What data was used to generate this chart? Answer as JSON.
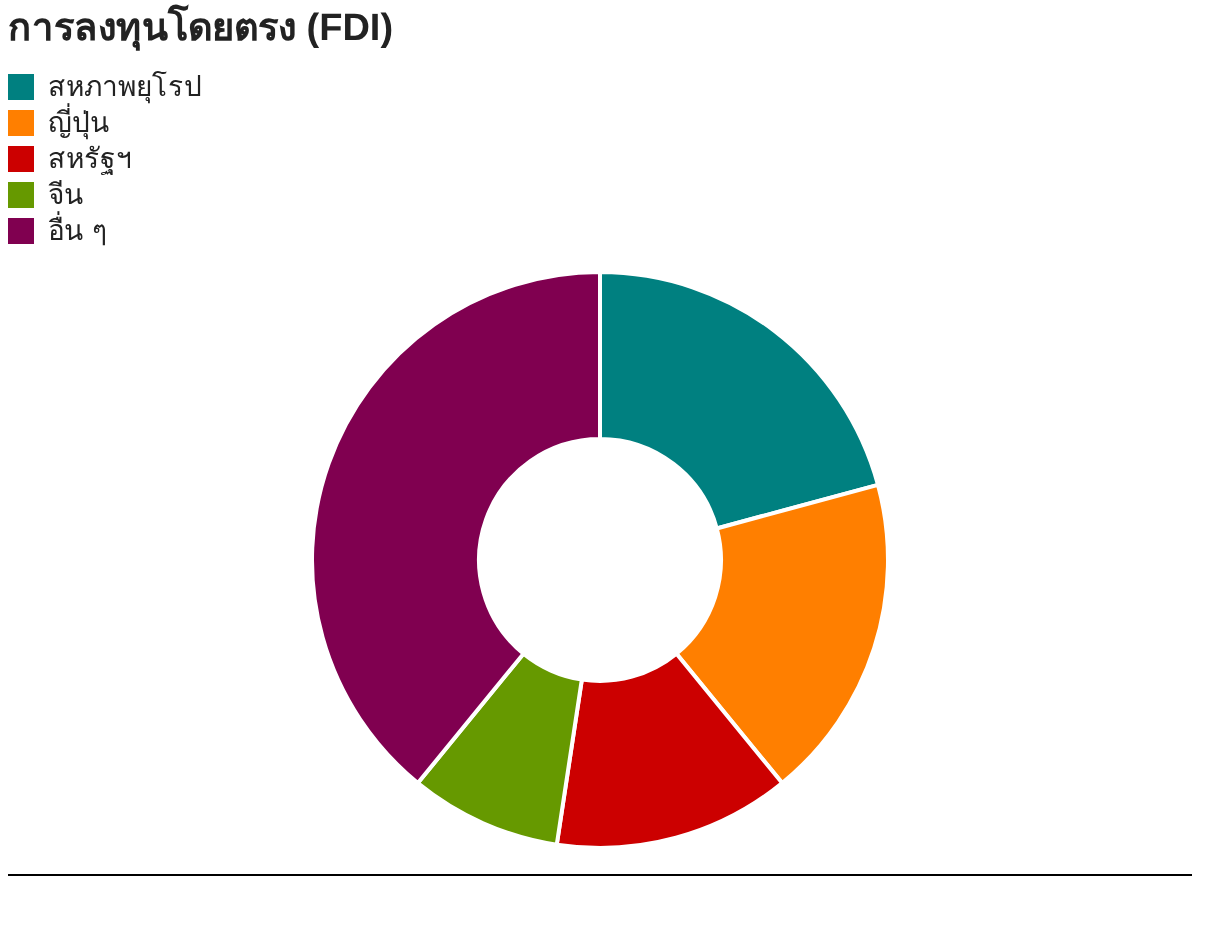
{
  "chart_data": {
    "type": "donut",
    "title": "การลงทุนโดยตรง (FDI)",
    "categories": [
      "สหภาพยุโรป",
      "ญี่ปุ่น",
      "สหรัฐฯ",
      "จีน",
      "อื่น ๆ"
    ],
    "values": [
      20.8,
      18.3,
      13.3,
      8.5,
      39.1
    ],
    "colors": [
      "#008080",
      "#ff7f00",
      "#cc0000",
      "#669900",
      "#800050"
    ],
    "legend": "top left"
  }
}
